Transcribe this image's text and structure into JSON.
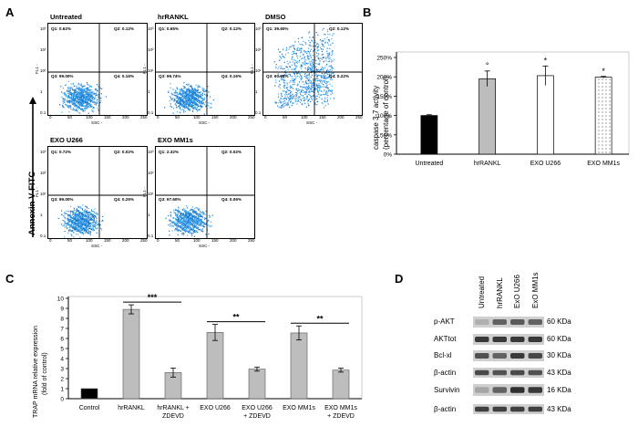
{
  "panels": {
    "a": "A",
    "b": "B",
    "c": "C",
    "d": "D"
  },
  "panel_a": {
    "y_axis_label": "Annexin V-FITC",
    "fl_label": "FL1 -",
    "ssc_label": "SSC -",
    "ssc_ticks": [
      "0",
      "50",
      "100",
      "150",
      "200",
      "250"
    ],
    "fl_ticks": [
      "10³",
      "10²",
      "10¹",
      "1",
      "0.1"
    ],
    "plots": [
      {
        "title": "Untreated",
        "q1": "Q1: 0.62%",
        "q2": "Q2: 0.12%",
        "q3": "Q3: 99.00%",
        "q4": "Q4: 0.16%"
      },
      {
        "title": "hrRANKL",
        "q1": "Q1: 0.65%",
        "q2": "Q2: 0.12%",
        "q3": "Q3: 99.74%",
        "q4": "Q4: 0.16%"
      },
      {
        "title": "DMSO",
        "q1": "Q1: 39.60%",
        "q2": "Q2: 0.12%",
        "q3": "Q3: 60.08%",
        "q4": "Q4: 0.22%"
      },
      {
        "title": "EXO U266",
        "q1": "Q1: 0.72%",
        "q2": "Q2: 0.02%",
        "q3": "Q3: 99.00%",
        "q4": "Q4: 0.25%"
      },
      {
        "title": "EXO MM1s",
        "q1": "Q1: 2.32%",
        "q2": "Q2: 0.02%",
        "q3": "Q3: 97.60%",
        "q4": "Q4: 0.06%"
      }
    ]
  },
  "chart_data": [
    {
      "type": "bar",
      "panel": "B",
      "categories": [
        "Untreated",
        "hrRANKL",
        "EXO U266",
        "EXO MM1s"
      ],
      "values": [
        100,
        195,
        203,
        199
      ],
      "errors": [
        2,
        20,
        25,
        2
      ],
      "significance": [
        "",
        "°",
        "*",
        "*"
      ],
      "fills": [
        "#000000",
        "#bdbdbd",
        "#ffffff",
        "dotted"
      ],
      "ylabel_lines": [
        "caspase 3-7 activity",
        "(percentage of control)"
      ],
      "ylim": [
        0,
        250
      ],
      "yticks": [
        "0%",
        "50%",
        "100%",
        "150%",
        "200%",
        "250%"
      ],
      "ytick_values": [
        0,
        50,
        100,
        150,
        200,
        250
      ]
    },
    {
      "type": "bar",
      "panel": "C",
      "categories": [
        [
          "Control"
        ],
        [
          "hrRANKL"
        ],
        [
          "hrRANKL +",
          "ZDEVD"
        ],
        [
          "EXO U266"
        ],
        [
          "EXO U266",
          "+ ZDEVD"
        ],
        [
          "EXO MM1s"
        ],
        [
          "EXO MM1s",
          "+ ZDEVD"
        ]
      ],
      "values": [
        1,
        8.9,
        2.6,
        6.6,
        2.95,
        6.55,
        2.85
      ],
      "errors": [
        0,
        0.45,
        0.45,
        0.8,
        0.2,
        0.7,
        0.2
      ],
      "fills": [
        "#000000",
        "#bdbdbd",
        "#bdbdbd",
        "#bdbdbd",
        "#bdbdbd",
        "#bdbdbd",
        "#bdbdbd"
      ],
      "ylabel_lines": [
        "TRAP mRNA relative expression",
        "(fold of control)"
      ],
      "ylim": [
        0,
        10
      ],
      "yticks": [
        "0",
        "1",
        "2",
        "3",
        "4",
        "5",
        "6",
        "7",
        "8",
        "9",
        "10"
      ],
      "ytick_values": [
        0,
        1,
        2,
        3,
        4,
        5,
        6,
        7,
        8,
        9,
        10
      ],
      "brackets": [
        {
          "from": 1,
          "to": 2,
          "label": "***"
        },
        {
          "from": 3,
          "to": 4,
          "label": "**"
        },
        {
          "from": 5,
          "to": 6,
          "label": "**"
        }
      ]
    }
  ],
  "panel_d": {
    "lanes": [
      "Untreated",
      "hrRANKL",
      "ExO U266",
      "ExO MM1s"
    ],
    "rows": [
      {
        "label": "p-AKT",
        "size": "60 KDa",
        "intensity": [
          0.15,
          0.6,
          0.65,
          0.6
        ]
      },
      {
        "label": "AKTtot",
        "size": "60 KDa",
        "intensity": [
          0.85,
          0.85,
          0.85,
          0.85
        ]
      },
      {
        "label": "Bcl-xl",
        "size": "30 KDa",
        "intensity": [
          0.7,
          0.6,
          0.85,
          0.75
        ]
      },
      {
        "label": "β-actin",
        "size": "43 KDa",
        "intensity": [
          0.75,
          0.7,
          0.75,
          0.7
        ]
      },
      {
        "label": "Survivin",
        "size": "16 KDa",
        "intensity": [
          0.2,
          0.6,
          0.9,
          0.85
        ]
      },
      {
        "label": "β-actin",
        "size": "43 KDa",
        "intensity": [
          0.8,
          0.8,
          0.8,
          0.8
        ]
      }
    ]
  }
}
